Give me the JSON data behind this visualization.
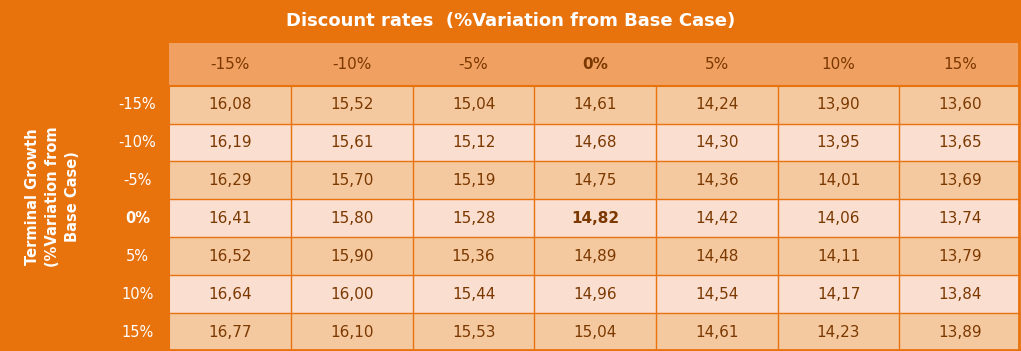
{
  "title": "Discount rates  (%Variation from Base Case)",
  "col_header": [
    "-15%",
    "-10%",
    "-5%",
    "0%",
    "5%",
    "10%",
    "15%"
  ],
  "row_header": [
    "-15%",
    "-10%",
    "-5%",
    "0%",
    "5%",
    "10%",
    "15%"
  ],
  "table_data": [
    [
      "16,08",
      "15,52",
      "15,04",
      "14,61",
      "14,24",
      "13,90",
      "13,60"
    ],
    [
      "16,19",
      "15,61",
      "15,12",
      "14,68",
      "14,30",
      "13,95",
      "13,65"
    ],
    [
      "16,29",
      "15,70",
      "15,19",
      "14,75",
      "14,36",
      "14,01",
      "13,69"
    ],
    [
      "16,41",
      "15,80",
      "15,28",
      "14,82",
      "14,42",
      "14,06",
      "13,74"
    ],
    [
      "16,52",
      "15,90",
      "15,36",
      "14,89",
      "14,48",
      "14,11",
      "13,79"
    ],
    [
      "16,64",
      "16,00",
      "15,44",
      "14,96",
      "14,54",
      "14,17",
      "13,84"
    ],
    [
      "16,77",
      "16,10",
      "15,53",
      "15,04",
      "14,61",
      "14,23",
      "13,89"
    ]
  ],
  "bold_cell": [
    3,
    3
  ],
  "bold_row_header_idx": 3,
  "bold_col_header_idx": 3,
  "y_label": "Terminal Growth\n(%Variation from\nBase Case)",
  "orange_dark": "#E8720C",
  "orange_medium": "#F0A060",
  "orange_light1": "#F5C9A0",
  "orange_light2": "#FADED0",
  "text_color": "#7B3800",
  "white": "#FFFFFF",
  "title_fontsize": 13,
  "header_fontsize": 11,
  "cell_fontsize": 11,
  "ylabel_fontsize": 10.5,
  "row_header_fontsize": 10.5
}
